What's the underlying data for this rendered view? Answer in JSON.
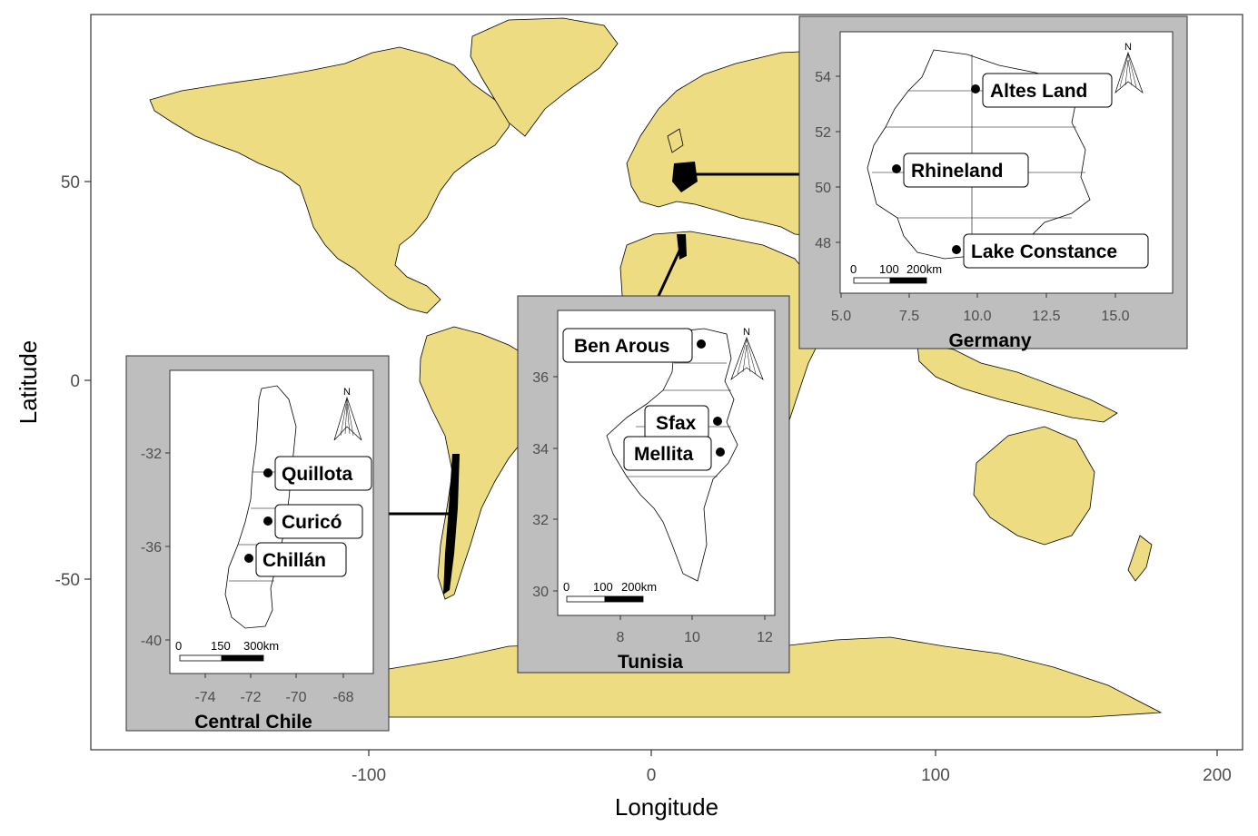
{
  "map": {
    "xlabel": "Longitude",
    "ylabel": "Latitude",
    "x_ticks": [
      "-100",
      "0",
      "100",
      "200"
    ],
    "y_ticks": [
      "50",
      "0",
      "-50"
    ],
    "land_color": "#EEDC82",
    "inset_frame_color": "#BEBEBE"
  },
  "chart_data": {
    "type": "map",
    "xlabel": "Longitude",
    "ylabel": "Latitude",
    "x_ticks": [
      -100,
      0,
      100,
      200
    ],
    "y_ticks": [
      50,
      0,
      -50
    ],
    "insets": [
      {
        "title": "Central Chile",
        "x_ticks": [
          "-74",
          "-72",
          "-70",
          "-68"
        ],
        "y_ticks": [
          "-32",
          "-36",
          "-40"
        ],
        "scale": [
          "0",
          "150",
          "300km"
        ],
        "north": "N",
        "sites": [
          {
            "name": "Quillota",
            "lon": -71.2,
            "lat": -32.9
          },
          {
            "name": "Curicó",
            "lon": -71.2,
            "lat": -35.0
          },
          {
            "name": "Chillán",
            "lon": -72.1,
            "lat": -36.6
          }
        ]
      },
      {
        "title": "Tunisia",
        "x_ticks": [
          "8",
          "10",
          "12"
        ],
        "y_ticks": [
          "36",
          "34",
          "32",
          "30"
        ],
        "scale": [
          "0",
          "100",
          "200km"
        ],
        "north": "N",
        "sites": [
          {
            "name": "Ben Arous",
            "lon": 10.2,
            "lat": 36.8
          },
          {
            "name": "Sfax",
            "lon": 10.7,
            "lat": 34.7
          },
          {
            "name": "Mellita",
            "lon": 10.8,
            "lat": 33.9
          }
        ]
      },
      {
        "title": "Germany",
        "x_ticks": [
          "5.0",
          "7.5",
          "10.0",
          "12.5",
          "15.0"
        ],
        "y_ticks": [
          "54",
          "52",
          "50",
          "48"
        ],
        "scale": [
          "0",
          "100",
          "200km"
        ],
        "north": "N",
        "sites": [
          {
            "name": "Altes Land",
            "lon": 9.7,
            "lat": 53.5
          },
          {
            "name": "Rhineland",
            "lon": 7.1,
            "lat": 50.6
          },
          {
            "name": "Lake Constance",
            "lon": 9.2,
            "lat": 47.6
          }
        ]
      }
    ]
  }
}
